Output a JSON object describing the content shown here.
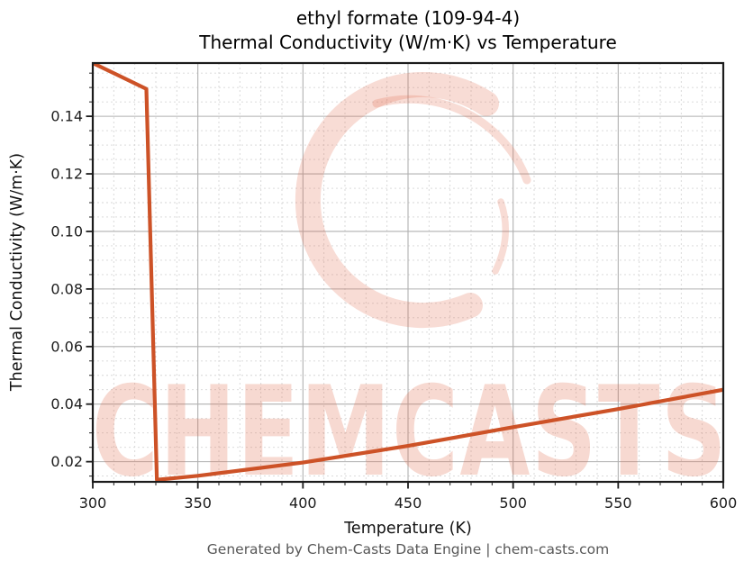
{
  "title": {
    "line1": "ethyl formate (109-94-4)",
    "line2": "Thermal Conductivity (W/m·K) vs Temperature"
  },
  "footer": {
    "text": "Generated by Chem-Casts Data Engine | chem-casts.com"
  },
  "watermark": {
    "text": "CHEMCASTS",
    "logo_icon": "chemcasts-c-logo",
    "logo_fill": "rgba(226,108,78,0.24)",
    "text_fill": "rgba(226,108,78,0.26)"
  },
  "colors": {
    "line": "#cd5227",
    "grid_major": "#b0b0b0",
    "grid_minor": "#d6d6d6",
    "axis": "#1c1c1c",
    "tick_label": "#1c1c1c",
    "axis_label": "#111111",
    "footer_text": "#575757",
    "background": "#ffffff"
  },
  "chart_data": {
    "type": "line",
    "title": "ethyl formate (109-94-4) Thermal Conductivity (W/m·K) vs Temperature",
    "xlabel": "Temperature (K)",
    "ylabel": "Thermal Conductivity (W/m·K)",
    "xlim": [
      300,
      600
    ],
    "ylim": [
      0.013,
      0.1585
    ],
    "x_ticks": [
      300,
      350,
      400,
      450,
      500,
      550,
      600
    ],
    "y_ticks": [
      0.02,
      0.04,
      0.06,
      0.08,
      0.1,
      0.12,
      0.14
    ],
    "x_minor_step": 10,
    "y_minor_step": 0.005,
    "grid": true,
    "legend": false,
    "line_color": "#cd5227",
    "line_width": 4.2,
    "series": [
      {
        "name": "Thermal Conductivity (W/m·K)",
        "x": [
          300,
          325.5,
          330.5,
          350,
          400,
          450,
          500,
          550,
          600
        ],
        "y": [
          0.1585,
          0.1495,
          0.0137,
          0.0151,
          0.0197,
          0.0255,
          0.032,
          0.0383,
          0.045
        ]
      }
    ]
  }
}
